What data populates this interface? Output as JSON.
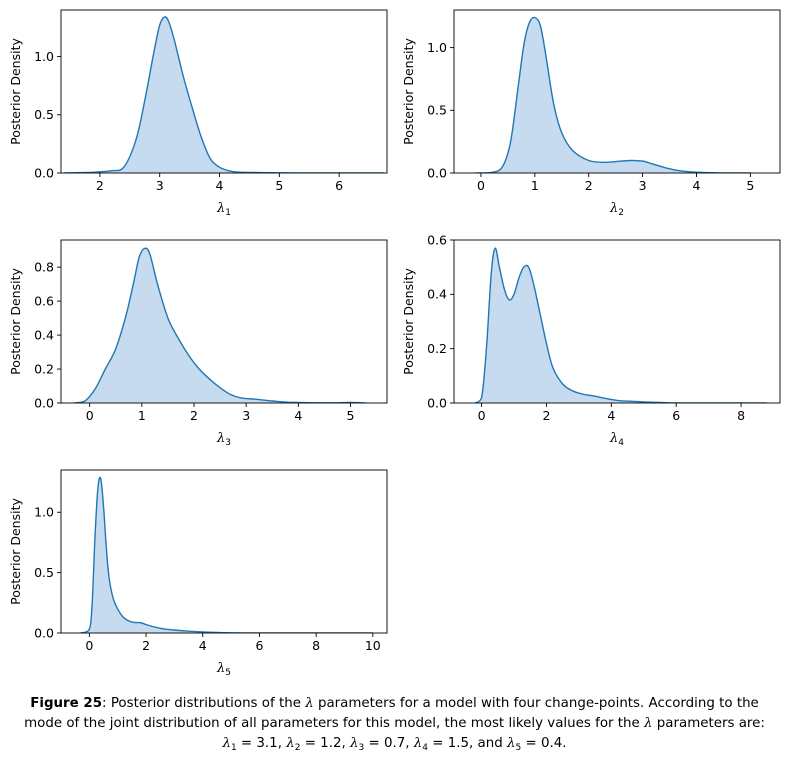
{
  "chart_data": [
    {
      "type": "area",
      "ylabel": "Posterior Density",
      "xlabel_symbol": "λ",
      "xlabel_sub": "1",
      "xlim": [
        1.35,
        6.8
      ],
      "ylim": [
        0,
        1.4
      ],
      "xticks": [
        "2",
        "3",
        "4",
        "5",
        "6"
      ],
      "yticks": [
        "0.0",
        "0.5",
        "1.0"
      ],
      "x": [
        1.4,
        1.8,
        2.0,
        2.2,
        2.4,
        2.6,
        2.75,
        2.9,
        3.0,
        3.08,
        3.15,
        3.25,
        3.4,
        3.55,
        3.7,
        3.85,
        4.0,
        4.15,
        4.3,
        4.6,
        5.0,
        5.5,
        6.0,
        6.5,
        6.75
      ],
      "y": [
        0.0,
        0.004,
        0.01,
        0.02,
        0.05,
        0.28,
        0.62,
        1.03,
        1.27,
        1.34,
        1.3,
        1.13,
        0.82,
        0.55,
        0.3,
        0.12,
        0.05,
        0.02,
        0.008,
        0.004,
        0.002,
        0.0,
        0.0,
        0.0,
        0.0
      ]
    },
    {
      "type": "area",
      "ylabel": "Posterior Density",
      "xlabel_symbol": "λ",
      "xlabel_sub": "2",
      "xlim": [
        -0.5,
        5.55
      ],
      "ylim": [
        0,
        1.3
      ],
      "xticks": [
        "0",
        "1",
        "2",
        "3",
        "4",
        "5"
      ],
      "yticks": [
        "0.0",
        "0.5",
        "1.0"
      ],
      "x": [
        -0.1,
        0.2,
        0.4,
        0.55,
        0.7,
        0.8,
        0.9,
        1.0,
        1.1,
        1.2,
        1.35,
        1.5,
        1.7,
        2.0,
        2.3,
        2.6,
        2.8,
        3.0,
        3.2,
        3.4,
        3.6,
        3.8,
        4.0,
        4.3,
        4.6,
        5.0
      ],
      "y": [
        0.0,
        0.005,
        0.05,
        0.25,
        0.72,
        1.03,
        1.2,
        1.24,
        1.18,
        0.95,
        0.55,
        0.32,
        0.18,
        0.1,
        0.085,
        0.095,
        0.1,
        0.095,
        0.07,
        0.045,
        0.025,
        0.012,
        0.006,
        0.002,
        0.0,
        0.0
      ]
    },
    {
      "type": "area",
      "ylabel": "Posterior Density",
      "xlabel_symbol": "λ",
      "xlabel_sub": "3",
      "xlim": [
        -0.55,
        5.7
      ],
      "ylim": [
        0,
        0.96
      ],
      "xticks": [
        "0",
        "1",
        "2",
        "3",
        "4",
        "5"
      ],
      "yticks": [
        "0.0",
        "0.2",
        "0.4",
        "0.6",
        "0.8"
      ],
      "x": [
        -0.3,
        -0.1,
        0.1,
        0.3,
        0.5,
        0.7,
        0.85,
        0.95,
        1.05,
        1.15,
        1.3,
        1.5,
        1.7,
        1.9,
        2.1,
        2.3,
        2.5,
        2.7,
        2.9,
        3.2,
        3.5,
        3.8,
        4.2,
        4.6,
        5.0,
        5.3
      ],
      "y": [
        0.0,
        0.01,
        0.08,
        0.2,
        0.32,
        0.52,
        0.72,
        0.86,
        0.91,
        0.88,
        0.7,
        0.5,
        0.38,
        0.28,
        0.2,
        0.14,
        0.09,
        0.05,
        0.03,
        0.022,
        0.012,
        0.005,
        0.002,
        0.001,
        0.003,
        0.0
      ]
    },
    {
      "type": "area",
      "ylabel": "Posterior Density",
      "xlabel_symbol": "λ",
      "xlabel_sub": "4",
      "xlim": [
        -0.85,
        9.2
      ],
      "ylim": [
        0,
        0.6
      ],
      "xticks": [
        "0",
        "2",
        "4",
        "6",
        "8"
      ],
      "yticks": [
        "0.0",
        "0.2",
        "0.4",
        "0.6"
      ],
      "x": [
        -0.2,
        0.0,
        0.15,
        0.3,
        0.42,
        0.55,
        0.7,
        0.85,
        1.0,
        1.15,
        1.3,
        1.45,
        1.6,
        1.8,
        2.0,
        2.2,
        2.5,
        2.8,
        3.1,
        3.5,
        3.9,
        4.3,
        4.7,
        5.0,
        5.5,
        6.0,
        7.0,
        8.0,
        8.8
      ],
      "y": [
        0.0,
        0.02,
        0.2,
        0.48,
        0.57,
        0.5,
        0.42,
        0.38,
        0.4,
        0.46,
        0.5,
        0.5,
        0.44,
        0.33,
        0.22,
        0.13,
        0.07,
        0.045,
        0.033,
        0.025,
        0.015,
        0.008,
        0.006,
        0.004,
        0.002,
        0.0,
        0.0,
        0.0,
        0.0
      ]
    },
    {
      "type": "area",
      "ylabel": "Posterior Density",
      "xlabel_symbol": "λ",
      "xlabel_sub": "5",
      "xlim": [
        -1.0,
        10.5
      ],
      "ylim": [
        0,
        1.35
      ],
      "xticks": [
        "0",
        "2",
        "4",
        "6",
        "8",
        "10"
      ],
      "yticks": [
        "0.0",
        "0.5",
        "1.0"
      ],
      "x": [
        -0.3,
        0.0,
        0.1,
        0.2,
        0.3,
        0.4,
        0.5,
        0.6,
        0.7,
        0.85,
        1.0,
        1.2,
        1.5,
        1.8,
        2.0,
        2.3,
        2.6,
        3.0,
        3.5,
        4.0,
        4.5,
        5.0,
        5.5,
        6.0,
        7.0,
        8.0,
        9.0,
        10.0
      ],
      "y": [
        0.0,
        0.03,
        0.25,
        0.8,
        1.2,
        1.28,
        1.05,
        0.7,
        0.45,
        0.28,
        0.2,
        0.13,
        0.09,
        0.085,
        0.07,
        0.05,
        0.035,
        0.025,
        0.015,
        0.008,
        0.004,
        0.002,
        0.001,
        0.0,
        0.0,
        0.0,
        0.0,
        0.0
      ]
    }
  ],
  "caption": {
    "label": "Figure 25",
    "text_1": ": Posterior distributions of the ",
    "lambda": "λ",
    "text_2": " parameters for a model with four change-points. According to the mode of the joint distribution of all parameters for this model, the most likely values for the ",
    "text_3": " parameters are: ",
    "sub_1": "1",
    "val_1": " = 3.1, ",
    "sub_2": "2",
    "val_2": " = 1.2, ",
    "sub_3": "3",
    "val_3": " = 0.7, ",
    "sub_4": "4",
    "val_4": " = 1.5, and ",
    "sub_5": "5",
    "val_5": " = 0.4."
  },
  "colors": {
    "line": "#1f77b4",
    "fill": "#c6dbef",
    "axes": "#000000"
  }
}
